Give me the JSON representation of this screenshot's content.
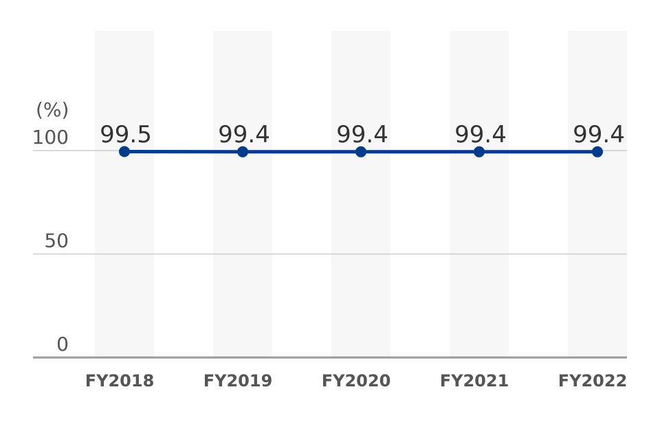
{
  "chart_data": {
    "type": "line",
    "categories": [
      "FY2018",
      "FY2019",
      "FY2020",
      "FY2021",
      "FY2022"
    ],
    "series": [
      {
        "values": [
          99.5,
          99.4,
          99.4,
          99.4,
          99.4
        ]
      }
    ],
    "data_labels": [
      "99.5",
      "99.4",
      "99.4",
      "99.4",
      "99.4"
    ],
    "y_unit": "(%)",
    "y_ticks": [
      0,
      50,
      100
    ],
    "y_tick_labels": [
      "0",
      "50",
      "100"
    ],
    "ylim": [
      0,
      100
    ],
    "grid": true,
    "colors": {
      "line": "#003b8e",
      "column_band": "#f7f7f7",
      "gridline": "#cccccc",
      "axis": "#999999"
    }
  }
}
